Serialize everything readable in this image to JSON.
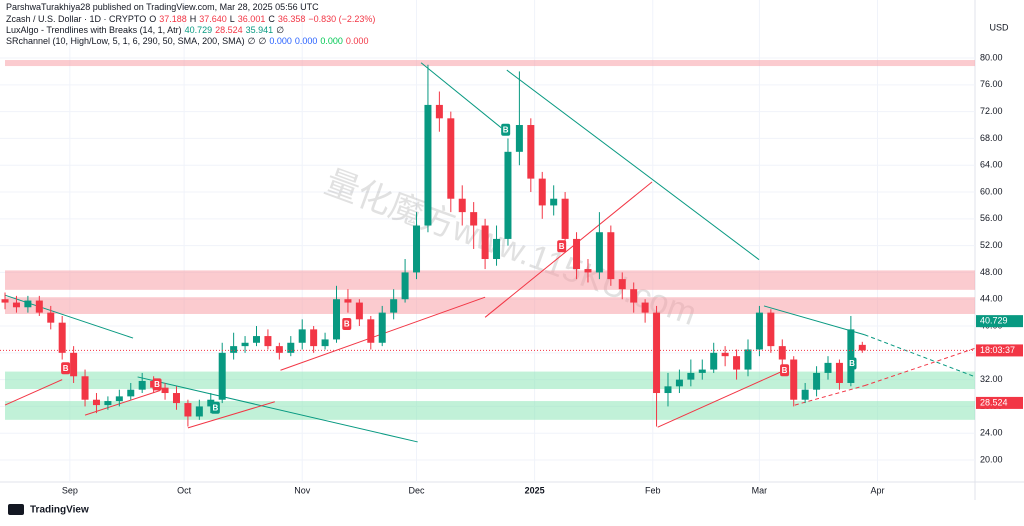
{
  "header": {
    "publisher": "ParshwaTurakhiya28 published on TradingView.com, Mar 28, 2025 05:56 UTC",
    "footer": "TradingView",
    "currency": "USD",
    "watermark": "量化魔方www.115KU.com"
  },
  "chart_data": {
    "type": "candlestick",
    "legend": [
      [
        {
          "text": "Zcash / U.S. Dollar · 1D · CRYPTO",
          "color": "#131722"
        },
        {
          "text": "O",
          "color": "#131722"
        },
        {
          "text": "37.188",
          "color": "#f23645"
        },
        {
          "text": "H",
          "color": "#131722"
        },
        {
          "text": "37.640",
          "color": "#f23645"
        },
        {
          "text": "L",
          "color": "#131722"
        },
        {
          "text": "36.001",
          "color": "#f23645"
        },
        {
          "text": "C",
          "color": "#131722"
        },
        {
          "text": "36.358",
          "color": "#f23645"
        },
        {
          "text": "−0.830 (−2.23%)",
          "color": "#f23645"
        }
      ],
      [
        {
          "text": "LuxAlgo - Trendlines with Breaks (14, 1, Atr)",
          "color": "#131722"
        },
        {
          "text": "40.729",
          "color": "#089981"
        },
        {
          "text": "28.524",
          "color": "#f23645"
        },
        {
          "text": "35.941",
          "color": "#089981"
        },
        {
          "text": "∅",
          "color": "#131722"
        }
      ],
      [
        {
          "text": "SRchannel (10, High/Low, 5, 1, 6, 290, 50, SMA, 200, SMA)",
          "color": "#131722"
        },
        {
          "text": "∅",
          "color": "#131722"
        },
        {
          "text": "∅",
          "color": "#131722"
        },
        {
          "text": "0.000",
          "color": "#2962ff"
        },
        {
          "text": "0.000",
          "color": "#2962ff"
        },
        {
          "text": "0.000",
          "color": "#00c853"
        },
        {
          "text": "0.000",
          "color": "#f23645"
        }
      ]
    ],
    "up_color": "#089981",
    "down_color": "#f23645",
    "open": [
      44,
      43.5,
      42.8,
      43.8,
      42,
      40.5,
      36,
      32.5,
      29,
      28.2,
      28.8,
      29.5,
      30.5,
      31.8,
      30.8,
      30,
      28.5,
      26.5,
      28,
      29,
      36,
      37,
      37.5,
      38.5,
      37,
      36,
      37.5,
      39.5,
      37,
      38,
      44,
      43.5,
      41,
      37.5,
      42,
      44,
      48,
      55,
      73,
      71,
      59,
      57,
      55,
      50,
      53,
      66,
      70,
      62,
      58,
      59,
      53,
      48.5,
      48,
      54,
      47,
      45.5,
      43.5,
      42,
      30,
      31,
      32,
      33,
      33.5,
      36,
      35.5,
      33.5,
      36.5,
      42,
      37,
      35,
      29,
      30.5,
      33,
      34.5,
      31.5,
      37.188
    ],
    "high": [
      45,
      44.5,
      44.5,
      44.5,
      43,
      41.5,
      37,
      33.5,
      30,
      29.5,
      30.5,
      31.5,
      33,
      32.5,
      31.5,
      31,
      29,
      29,
      30,
      37.5,
      39,
      38.5,
      40,
      39.5,
      37.5,
      38.5,
      41,
      40,
      39,
      46,
      45.5,
      44,
      41.5,
      43,
      45.5,
      50,
      57,
      79,
      75,
      72,
      61,
      58.5,
      56,
      55,
      68,
      78,
      71,
      63,
      61,
      60,
      54,
      50,
      57,
      55,
      48,
      46.5,
      44,
      43,
      33,
      33.5,
      35,
      35,
      37.5,
      37,
      36.5,
      38,
      43,
      42.5,
      38,
      35.5,
      31.5,
      34,
      35.5,
      35,
      41.5,
      37.64
    ],
    "low": [
      42.5,
      42,
      42,
      41.5,
      39.5,
      35,
      31.5,
      28,
      27,
      27.5,
      28,
      29,
      30,
      30,
      29,
      27.5,
      25,
      26,
      27,
      28.5,
      35,
      36,
      37,
      36.5,
      35,
      35.5,
      36.5,
      36,
      36.5,
      37.5,
      42,
      40,
      36.5,
      37,
      41,
      43.5,
      47,
      54,
      69,
      57,
      55,
      51.5,
      48.5,
      49,
      52,
      64,
      60,
      56,
      56.5,
      52,
      47,
      46.5,
      47,
      46,
      44,
      42,
      40.5,
      25,
      28,
      30,
      31,
      32,
      33,
      34,
      32,
      32.5,
      35.5,
      36,
      34,
      28,
      28.5,
      29.5,
      32,
      30.5,
      31,
      36.001
    ],
    "close": [
      43.5,
      42.8,
      43.8,
      42,
      40.5,
      36,
      32.5,
      29,
      28.2,
      28.8,
      29.5,
      30.5,
      31.8,
      30.8,
      30,
      28.5,
      26.5,
      28,
      29,
      36,
      37,
      37.5,
      38.5,
      37,
      36,
      37.5,
      39.5,
      37,
      38,
      44,
      43.5,
      41,
      37.5,
      42,
      44,
      48,
      55,
      73,
      71,
      59,
      57,
      55,
      50,
      53,
      66,
      70,
      62,
      58,
      59,
      53,
      48.5,
      48,
      54,
      47,
      45.5,
      43.5,
      42,
      30,
      31,
      32,
      33,
      33.5,
      36,
      35.5,
      33.5,
      36.5,
      42,
      37,
      35,
      29,
      30.5,
      33,
      34.5,
      31.5,
      39.5,
      36.358
    ],
    "xlim": [
      -0.44,
      84.86
    ],
    "ylim": [
      16.72,
      86.57
    ],
    "xticks": [
      {
        "value": 5.67,
        "label": "Sep"
      },
      {
        "value": 15.67,
        "label": "Oct"
      },
      {
        "value": 26,
        "label": "Nov"
      },
      {
        "value": 36,
        "label": "Dec"
      },
      {
        "value": 46.33,
        "label": "2025"
      },
      {
        "value": 56.67,
        "label": "Feb"
      },
      {
        "value": 66,
        "label": "Mar"
      },
      {
        "value": 76.33,
        "label": "Apr"
      }
    ],
    "yticks": [
      {
        "value": 20,
        "label": "20.00"
      },
      {
        "value": 24,
        "label": "24.00"
      },
      {
        "value": 28,
        "label": "28.00"
      },
      {
        "value": 32,
        "label": "32.00"
      },
      {
        "value": 36,
        "label": "36.00"
      },
      {
        "value": 40,
        "label": "40.00"
      },
      {
        "value": 44,
        "label": "44.00"
      },
      {
        "value": 48,
        "label": "48.00"
      },
      {
        "value": 52,
        "label": "52.00"
      },
      {
        "value": 56,
        "label": "56.00"
      },
      {
        "value": 60,
        "label": "60.00"
      },
      {
        "value": 64,
        "label": "64.00"
      },
      {
        "value": 68,
        "label": "68.00"
      },
      {
        "value": 72,
        "label": "72.00"
      },
      {
        "value": 76,
        "label": "76.00"
      },
      {
        "value": 80,
        "label": "80.00"
      }
    ],
    "grid": true,
    "zones": [
      {
        "low": 78.8,
        "high": 79.7,
        "color": "#f7a1a8"
      },
      {
        "low": 45.4,
        "high": 48.3,
        "color": "#f7a1a8"
      },
      {
        "low": 41.8,
        "high": 44.3,
        "color": "#f7a1a8"
      },
      {
        "low": 30.6,
        "high": 33.2,
        "color": "#8ee6b8"
      },
      {
        "low": 26,
        "high": 28.8,
        "color": "#8ee6b8"
      }
    ],
    "trendlines": [
      {
        "x": [
          0,
          11.2
        ],
        "y": [
          44.6,
          38.2
        ],
        "color": "#089981",
        "dashed": false
      },
      {
        "x": [
          11.6,
          36.1
        ],
        "y": [
          32.4,
          22.7
        ],
        "color": "#089981",
        "dashed": false
      },
      {
        "x": [
          36.4,
          43.4
        ],
        "y": [
          79.3,
          69.6
        ],
        "color": "#089981",
        "dashed": false
      },
      {
        "x": [
          43.9,
          65.97
        ],
        "y": [
          78.2,
          49.9
        ],
        "color": "#089981",
        "dashed": false
      },
      {
        "x": [
          66.4,
          75.2
        ],
        "y": [
          43,
          38.7
        ],
        "color": "#089981",
        "dashed": false
      },
      {
        "x": [
          75.2,
          84.9
        ],
        "y": [
          38.7,
          32.4
        ],
        "color": "#089981",
        "dashed": true
      },
      {
        "x": [
          0,
          5
        ],
        "y": [
          28.2,
          32
        ],
        "color": "#f23645",
        "dashed": false
      },
      {
        "x": [
          7,
          13.6
        ],
        "y": [
          26.7,
          30.4
        ],
        "color": "#f23645",
        "dashed": false
      },
      {
        "x": [
          16,
          23.6
        ],
        "y": [
          24.8,
          28.7
        ],
        "color": "#f23645",
        "dashed": false
      },
      {
        "x": [
          24.1,
          42
        ],
        "y": [
          33.4,
          44.3
        ],
        "color": "#f23645",
        "dashed": false
      },
      {
        "x": [
          42,
          56.6
        ],
        "y": [
          41.3,
          61.5
        ],
        "color": "#f23645",
        "dashed": false
      },
      {
        "x": [
          57.1,
          68.2
        ],
        "y": [
          24.9,
          33.4
        ],
        "color": "#f23645",
        "dashed": false
      },
      {
        "x": [
          69.1,
          75.2
        ],
        "y": [
          28.2,
          31.1
        ],
        "color": "#f23645",
        "dashed": true
      },
      {
        "x": [
          75.2,
          84.9
        ],
        "y": [
          31.1,
          36.7
        ],
        "color": "#f23645",
        "dashed": true
      }
    ],
    "breaks": [
      {
        "x": 5.3,
        "y": 33.7,
        "label": "B",
        "color": "#f23645"
      },
      {
        "x": 13.3,
        "y": 31.3,
        "label": "B",
        "color": "#f23645"
      },
      {
        "x": 29.9,
        "y": 40.3,
        "label": "B",
        "color": "#f23645"
      },
      {
        "x": 48.7,
        "y": 51.9,
        "label": "B",
        "color": "#f23645"
      },
      {
        "x": 68.2,
        "y": 33.4,
        "label": "B",
        "color": "#f23645"
      },
      {
        "x": 18.4,
        "y": 27.8,
        "label": "B",
        "color": "#089981"
      },
      {
        "x": 43.8,
        "y": 69.3,
        "label": "B",
        "color": "#089981"
      },
      {
        "x": 74.1,
        "y": 34.4,
        "label": "B",
        "color": "#089981"
      }
    ],
    "axis_labels": [
      {
        "value": 40.729,
        "label": "40.729",
        "color": "#089981"
      },
      {
        "value": 28.524,
        "label": "28.524",
        "color": "#f23645"
      }
    ],
    "countdown": {
      "label": "18:03:37",
      "color": "#f23645"
    }
  }
}
